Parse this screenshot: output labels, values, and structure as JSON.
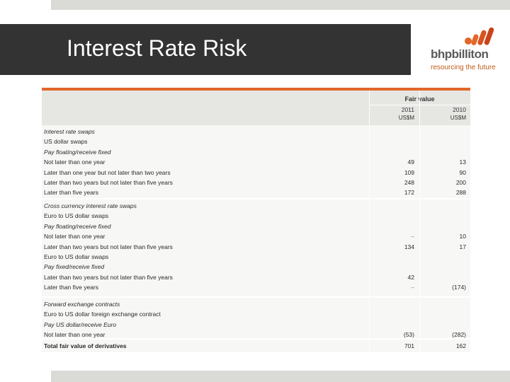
{
  "title": "Interest Rate Risk",
  "logo": {
    "name": "bhpbilliton",
    "tagline": "resourcing the future"
  },
  "table": {
    "header": {
      "group": "Fair value",
      "col1_year": "2011",
      "col1_unit": "US$M",
      "col2_year": "2010",
      "col2_unit": "US$M"
    },
    "sections": [
      {
        "rows": [
          {
            "label": "Interest rate swaps",
            "style": "italic",
            "v1": "",
            "v2": ""
          },
          {
            "label": "US dollar swaps",
            "style": "normal",
            "v1": "",
            "v2": ""
          },
          {
            "label": "Pay floating/receive fixed",
            "style": "italic",
            "v1": "",
            "v2": ""
          },
          {
            "label": "Not later than one year",
            "style": "normal",
            "v1": "49",
            "v2": "13"
          },
          {
            "label": "Later than one year but not later than two years",
            "style": "normal",
            "v1": "109",
            "v2": "90"
          },
          {
            "label": "Later than two years but not later than five years",
            "style": "normal",
            "v1": "248",
            "v2": "200"
          },
          {
            "label": "Later than five years",
            "style": "normal",
            "v1": "172",
            "v2": "288"
          }
        ]
      },
      {
        "rows": [
          {
            "label": "Cross currency interest rate swaps",
            "style": "italic",
            "v1": "",
            "v2": ""
          },
          {
            "label": "Euro to US dollar swaps",
            "style": "normal",
            "v1": "",
            "v2": ""
          },
          {
            "label": "Pay floating/receive fixed",
            "style": "italic",
            "v1": "",
            "v2": ""
          },
          {
            "label": "Not later than one year",
            "style": "normal",
            "v1": "–",
            "v2": "10"
          },
          {
            "label": "Later than two years but not later than five years",
            "style": "normal",
            "v1": "134",
            "v2": "17"
          },
          {
            "label": "Euro to US dollar swaps",
            "style": "normal",
            "v1": "",
            "v2": ""
          },
          {
            "label": "Pay fixed/receive fixed",
            "style": "italic",
            "v1": "",
            "v2": ""
          },
          {
            "label": "Later than two years but not later than five years",
            "style": "normal",
            "v1": "42",
            "v2": ""
          },
          {
            "label": "Later than five years",
            "style": "normal",
            "v1": "–",
            "v2": "(174)"
          }
        ]
      },
      {
        "rows": [
          {
            "label": "Forward exchange contracts",
            "style": "italic",
            "v1": "",
            "v2": ""
          },
          {
            "label": "Euro to US dollar foreign exchange contract",
            "style": "normal",
            "v1": "",
            "v2": ""
          },
          {
            "label": "Pay US dollar/receive Euro",
            "style": "italic",
            "v1": "",
            "v2": ""
          },
          {
            "label": "Not later than one year",
            "style": "normal",
            "v1": "(53)",
            "v2": "(282)"
          }
        ]
      },
      {
        "rows": [
          {
            "label": "Total fair value of derivatives",
            "style": "normal",
            "v1": "701",
            "v2": "162"
          }
        ]
      }
    ]
  }
}
